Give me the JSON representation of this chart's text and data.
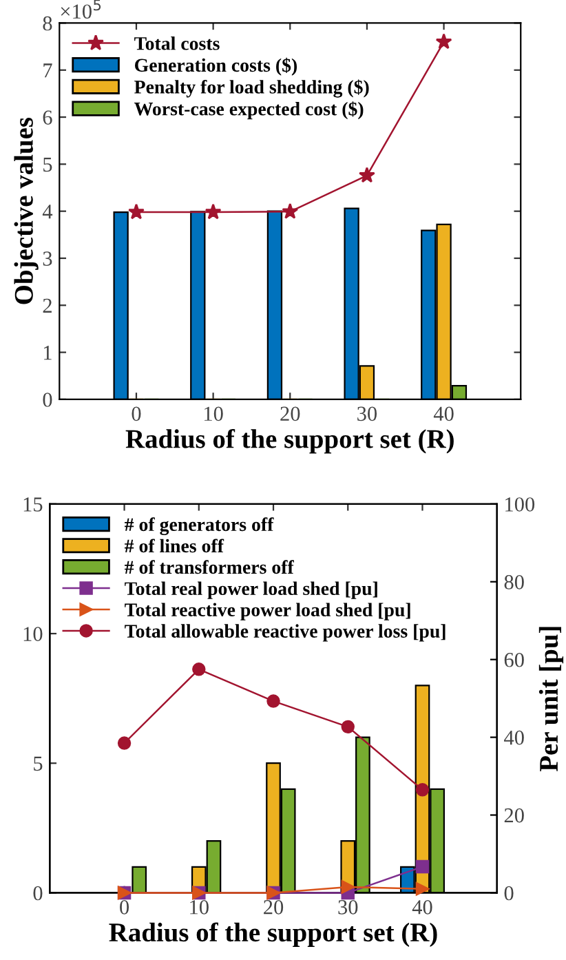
{
  "chart_data": [
    {
      "type": "bar",
      "xlabel": "Radius of the support set (R)",
      "ylabel": "Objective values",
      "x": [
        0,
        10,
        20,
        30,
        40
      ],
      "xlim": [
        -10,
        50
      ],
      "xticks": [
        0,
        10,
        20,
        30,
        40
      ],
      "ylim": [
        0,
        8
      ],
      "yticks": [
        0,
        1,
        2,
        3,
        4,
        5,
        6,
        7,
        8
      ],
      "annotations": [
        "×10$^{5}$"
      ],
      "legend": "top left",
      "grid": false,
      "series": [
        {
          "name": "Total costs",
          "type": "line",
          "color": "#a2142f",
          "marker": "star",
          "values": [
            3.98,
            3.98,
            3.99,
            4.76,
            7.6
          ]
        },
        {
          "name": "Generation costs ($)",
          "color": "#0072bd",
          "values": [
            3.98,
            3.99,
            4.0,
            4.06,
            3.59
          ]
        },
        {
          "name": "Penalty for load shedding ($)",
          "color": "#edb120",
          "values": [
            0,
            0,
            0,
            0.71,
            3.72
          ]
        },
        {
          "name": "Worst-case expected cost ($)",
          "color": "#77ac30",
          "values": [
            0,
            0,
            0,
            0,
            0.29
          ]
        }
      ]
    },
    {
      "type": "bar",
      "xlabel": "Radius of the support set (R)",
      "y2label": "Per unit [pu]",
      "x": [
        0,
        10,
        20,
        30,
        40
      ],
      "xlim": [
        -10,
        50
      ],
      "xticks": [
        0,
        10,
        20,
        30,
        40
      ],
      "ylim": [
        0,
        15
      ],
      "yticks": [
        0,
        5,
        10,
        15
      ],
      "y2lim": [
        0,
        100
      ],
      "y2ticks": [
        0,
        20,
        40,
        60,
        80,
        100
      ],
      "legend": "top left",
      "grid": false,
      "series": [
        {
          "name": "# of generators off",
          "color": "#0072bd",
          "values": [
            0,
            0,
            0,
            0,
            1
          ]
        },
        {
          "name": "# of lines off",
          "color": "#edb120",
          "values": [
            0,
            1,
            5,
            2,
            8
          ]
        },
        {
          "name": "# of transformers off",
          "color": "#77ac30",
          "values": [
            1,
            2,
            4,
            6,
            4
          ]
        },
        {
          "name": "Total real power load shed [pu]",
          "type": "line",
          "axis": "y2",
          "color": "#7e2f8e",
          "marker": "square",
          "values": [
            0,
            0,
            0,
            0,
            6.7
          ]
        },
        {
          "name": "Total reactive power load shed [pu]",
          "type": "line",
          "axis": "y2",
          "color": "#d95319",
          "marker": "triangle",
          "values": [
            0,
            0,
            0,
            1.5,
            1
          ]
        },
        {
          "name": "Total allowable reactive power loss [pu]",
          "type": "line",
          "axis": "y2",
          "color": "#a2142f",
          "marker": "circle",
          "values": [
            38.5,
            57.5,
            49.3,
            42.7,
            26.5
          ]
        }
      ]
    }
  ]
}
